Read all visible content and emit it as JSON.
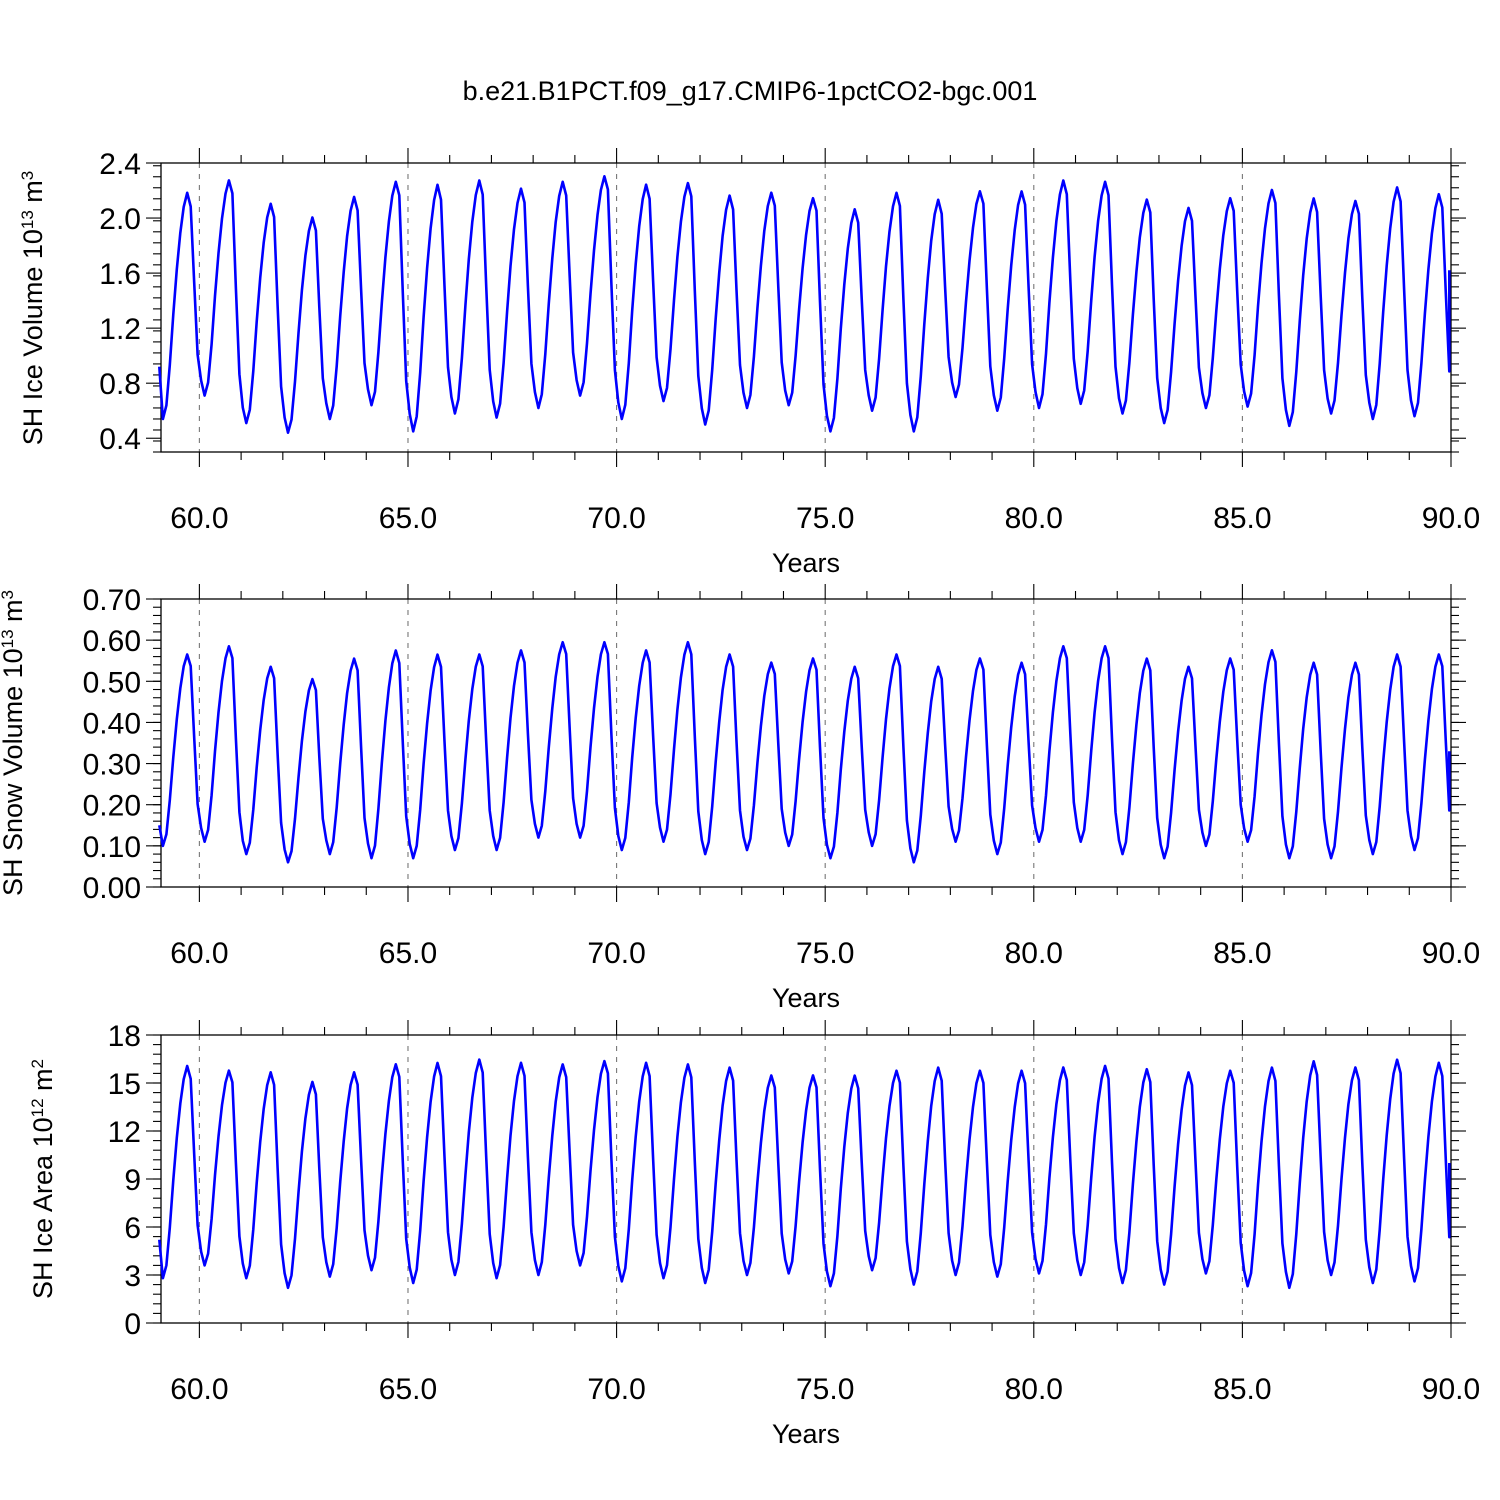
{
  "page": {
    "title": "b.e21.B1PCT.f09_g17.CMIP6-1pctCO2-bgc.001"
  },
  "chart_data": [
    {
      "type": "line",
      "title": "b.e21.B1PCT.f09_g17.CMIP6-1pctCO2-bgc.001",
      "xlabel": "Years",
      "ylabel": "SH Ice Volume 10",
      "ylabel_exponent": "13",
      "ylabel_unit": "m",
      "ylabel_unit_exponent": "3",
      "xlim": [
        59.08,
        90.0
      ],
      "ylim": [
        0.3,
        2.4
      ],
      "xticks": [
        60.0,
        65.0,
        70.0,
        75.0,
        80.0,
        85.0,
        90.0
      ],
      "xtick_labels": [
        "60.0",
        "65.0",
        "70.0",
        "75.0",
        "80.0",
        "85.0",
        "90.0"
      ],
      "yticks": [
        0.4,
        0.8,
        1.2,
        1.6,
        2.0,
        2.4
      ],
      "ytick_labels": [
        "0.4",
        "0.8",
        "1.2",
        "1.6",
        "2.0",
        "2.4"
      ],
      "reference_lines_x": [
        60,
        65,
        70,
        75,
        80,
        85
      ],
      "first_value": 0.92,
      "last_value": 1.62,
      "series": [
        {
          "color": "#0000ff",
          "annual_maxima": [
            2.2,
            2.29,
            2.12,
            2.02,
            2.17,
            2.28,
            2.26,
            2.29,
            2.23,
            2.28,
            2.32,
            2.26,
            2.27,
            2.18,
            2.2,
            2.16,
            2.08,
            2.2,
            2.15,
            2.21,
            2.21,
            2.29,
            2.28,
            2.15,
            2.09,
            2.16,
            2.22,
            2.16,
            2.14,
            2.24,
            2.19
          ],
          "annual_minima": [
            0.54,
            0.71,
            0.51,
            0.44,
            0.54,
            0.64,
            0.45,
            0.58,
            0.55,
            0.62,
            0.71,
            0.54,
            0.67,
            0.5,
            0.62,
            0.64,
            0.45,
            0.6,
            0.45,
            0.7,
            0.6,
            0.62,
            0.65,
            0.58,
            0.51,
            0.62,
            0.63,
            0.49,
            0.58,
            0.54,
            0.56
          ]
        }
      ]
    },
    {
      "type": "line",
      "xlabel": "Years",
      "ylabel": "SH Snow Volume 10",
      "ylabel_exponent": "13",
      "ylabel_unit": "m",
      "ylabel_unit_exponent": "3",
      "xlim": [
        59.08,
        90.0
      ],
      "ylim": [
        0.0,
        0.7
      ],
      "xticks": [
        60.0,
        65.0,
        70.0,
        75.0,
        80.0,
        85.0,
        90.0
      ],
      "xtick_labels": [
        "60.0",
        "65.0",
        "70.0",
        "75.0",
        "80.0",
        "85.0",
        "90.0"
      ],
      "yticks": [
        0.0,
        0.1,
        0.2,
        0.3,
        0.4,
        0.5,
        0.6,
        0.7
      ],
      "ytick_labels": [
        "0.00",
        "0.10",
        "0.20",
        "0.30",
        "0.40",
        "0.50",
        "0.60",
        "0.70"
      ],
      "reference_lines_x": [
        60,
        65,
        70,
        75,
        80,
        85
      ],
      "first_value": 0.15,
      "last_value": 0.33,
      "series": [
        {
          "color": "#0000ff",
          "annual_maxima": [
            0.57,
            0.59,
            0.54,
            0.51,
            0.56,
            0.58,
            0.57,
            0.57,
            0.58,
            0.6,
            0.6,
            0.58,
            0.6,
            0.57,
            0.55,
            0.56,
            0.54,
            0.57,
            0.54,
            0.56,
            0.55,
            0.59,
            0.59,
            0.56,
            0.54,
            0.56,
            0.58,
            0.55,
            0.55,
            0.57,
            0.57
          ],
          "annual_minima": [
            0.1,
            0.11,
            0.08,
            0.06,
            0.08,
            0.07,
            0.07,
            0.09,
            0.09,
            0.12,
            0.12,
            0.09,
            0.11,
            0.08,
            0.09,
            0.1,
            0.07,
            0.1,
            0.06,
            0.11,
            0.08,
            0.11,
            0.11,
            0.08,
            0.07,
            0.1,
            0.11,
            0.07,
            0.07,
            0.08,
            0.09
          ]
        }
      ]
    },
    {
      "type": "line",
      "xlabel": "Years",
      "ylabel": "SH Ice Area 10",
      "ylabel_exponent": "12",
      "ylabel_unit": "m",
      "ylabel_unit_exponent": "2",
      "xlim": [
        59.08,
        90.0
      ],
      "ylim": [
        0,
        18
      ],
      "xticks": [
        60.0,
        65.0,
        70.0,
        75.0,
        80.0,
        85.0,
        90.0
      ],
      "xtick_labels": [
        "60.0",
        "65.0",
        "70.0",
        "75.0",
        "80.0",
        "85.0",
        "90.0"
      ],
      "yticks": [
        0,
        3,
        6,
        9,
        12,
        15,
        18
      ],
      "ytick_labels": [
        "0",
        "3",
        "6",
        "9",
        "12",
        "15",
        "18"
      ],
      "reference_lines_x": [
        60,
        65,
        70,
        75,
        80,
        85
      ],
      "first_value": 5.2,
      "last_value": 10.0,
      "series": [
        {
          "color": "#0000ff",
          "annual_maxima": [
            16.2,
            15.9,
            15.8,
            15.2,
            15.8,
            16.3,
            16.4,
            16.6,
            16.4,
            16.3,
            16.5,
            16.4,
            16.3,
            16.1,
            15.6,
            15.6,
            15.6,
            15.9,
            16.1,
            15.9,
            15.9,
            16.1,
            16.2,
            16.0,
            15.8,
            15.9,
            16.1,
            16.5,
            16.1,
            16.6,
            16.4
          ],
          "annual_minima": [
            2.8,
            3.6,
            2.8,
            2.2,
            2.9,
            3.3,
            2.5,
            3.0,
            2.8,
            3.0,
            3.6,
            2.6,
            2.8,
            2.5,
            3.0,
            3.1,
            2.3,
            3.3,
            2.4,
            3.0,
            2.9,
            3.1,
            3.0,
            2.5,
            2.4,
            3.1,
            2.3,
            2.2,
            3.0,
            2.5,
            2.6
          ]
        }
      ]
    }
  ]
}
